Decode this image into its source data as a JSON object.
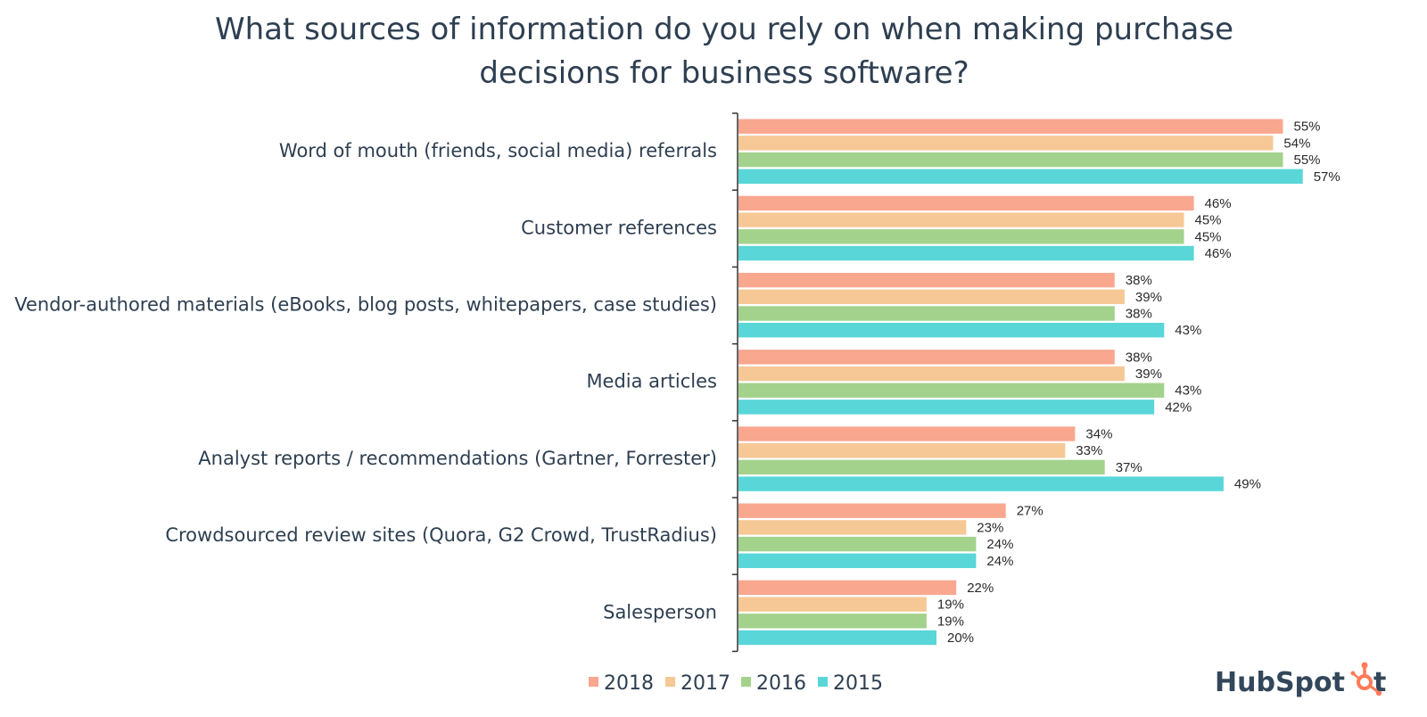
{
  "chart_data": {
    "type": "bar",
    "orientation": "horizontal",
    "title": "What sources of information do you rely on when making purchase decisions for business software?",
    "title_lines": [
      "What sources of information do you rely on when making purchase",
      "decisions for business software?"
    ],
    "categories": [
      "Word of mouth (friends, social media) referrals",
      "Customer references",
      "Vendor-authored materials (eBooks, blog posts, whitepapers, case studies)",
      "Media articles",
      "Analyst reports / recommendations (Gartner, Forrester)",
      "Crowdsourced review sites (Quora, G2 Crowd, TrustRadius)",
      "Salesperson"
    ],
    "series": [
      {
        "name": "2018",
        "color": "#f9a78f",
        "values": [
          55,
          46,
          38,
          38,
          34,
          27,
          22
        ]
      },
      {
        "name": "2017",
        "color": "#f6c896",
        "values": [
          54,
          45,
          39,
          39,
          33,
          23,
          19
        ]
      },
      {
        "name": "2016",
        "color": "#a3d28c",
        "values": [
          55,
          45,
          38,
          43,
          37,
          24,
          19
        ]
      },
      {
        "name": "2015",
        "color": "#59d6d8",
        "values": [
          57,
          46,
          43,
          42,
          49,
          24,
          20
        ]
      }
    ],
    "value_suffix": "%",
    "xlim": [
      0,
      60
    ],
    "xlabel": "",
    "ylabel": "",
    "grid": false,
    "legend_position": "bottom-center"
  },
  "logo": {
    "text": "HubSpot",
    "icon": "hubspot-sprocket-icon",
    "color": "#33475b",
    "accent": "#ff7a59"
  }
}
